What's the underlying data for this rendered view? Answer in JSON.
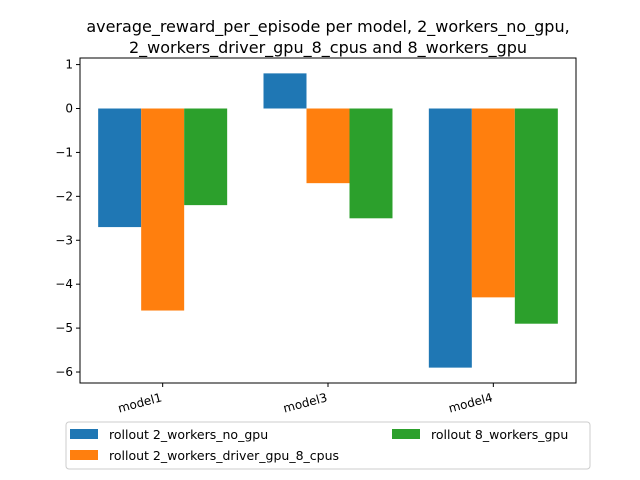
{
  "chart_data": {
    "type": "bar",
    "title_lines": [
      "average_reward_per_episode per model, 2_workers_no_gpu,",
      "2_workers_driver_gpu_8_cpus and 8_workers_gpu"
    ],
    "categories": [
      "model1",
      "model3",
      "model4"
    ],
    "series": [
      {
        "name": "rollout 2_workers_no_gpu",
        "color": "#1f77b4",
        "values": [
          -2.7,
          0.8,
          -5.9
        ]
      },
      {
        "name": "rollout 2_workers_driver_gpu_8_cpus",
        "color": "#ff7f0e",
        "values": [
          -4.6,
          -1.7,
          -4.3
        ]
      },
      {
        "name": "rollout 8_workers_gpu",
        "color": "#2ca02c",
        "values": [
          -2.2,
          -2.5,
          -4.9
        ]
      }
    ],
    "y_ticks": [
      1,
      0,
      -1,
      -2,
      -3,
      -4,
      -5,
      -6
    ],
    "y_tick_labels": [
      "1",
      "0",
      "−1",
      "−2",
      "−3",
      "−4",
      "−5",
      "−6"
    ],
    "ylim": [
      -6.25,
      1.15
    ],
    "xlabel": "",
    "ylabel": "",
    "grid": false,
    "legend_position": "below plot, two columns"
  }
}
